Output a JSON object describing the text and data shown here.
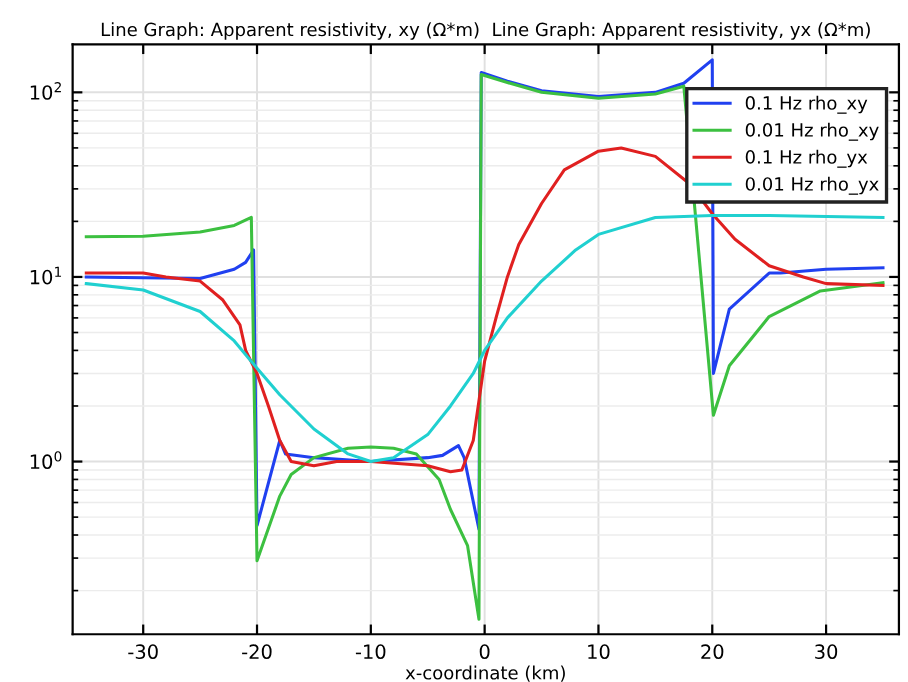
{
  "chart_data": {
    "type": "line",
    "title": "Line Graph: Apparent resistivity, xy (Ω*m)  Line Graph: Apparent resistivity, yx (Ω*m)",
    "xlabel": "x-coordinate (km)",
    "log": "y",
    "grid": true,
    "legend": "top right",
    "line_style": "solid",
    "marker": "none",
    "xlim": [
      -36.2,
      36.4
    ],
    "ylim": [
      0.116,
      182
    ],
    "xticks": [
      -30,
      -20,
      -10,
      0,
      10,
      20,
      30
    ],
    "yticks": [
      {
        "value": 1,
        "label": "10$^{0}$"
      },
      {
        "value": 10,
        "label": "10$^{1}$"
      },
      {
        "value": 100,
        "label": "10$^{2}$"
      }
    ],
    "series": [
      {
        "name": "0.1 Hz rho_xy",
        "color": "#2040f0",
        "x": [
          -35,
          -25,
          -22,
          -21,
          -20.3,
          -20,
          -18,
          -17.5,
          -15,
          -10,
          -5,
          -3.7,
          -2.3,
          -1.8,
          -0.5,
          -0.3,
          2,
          5,
          10,
          15,
          17.5,
          20,
          20.1,
          21.5,
          25,
          26,
          30,
          35
        ],
        "values": [
          10,
          9.8,
          11,
          12,
          14,
          0.45,
          1.3,
          1.1,
          1.05,
          1.0,
          1.05,
          1.08,
          1.22,
          1.05,
          0.43,
          128,
          115,
          102,
          95,
          100,
          112,
          150,
          3.0,
          6.7,
          10.5,
          10.5,
          11,
          11.2
        ]
      },
      {
        "name": "0.01 Hz rho_xy",
        "color": "#3cc040",
        "x": [
          -35,
          -30,
          -25,
          -22,
          -20.5,
          -20,
          -18,
          -17,
          -15,
          -12,
          -10,
          -8,
          -6,
          -4,
          -3,
          -1.5,
          -0.5,
          -0.3,
          2,
          5,
          10,
          15,
          17.5,
          20.1,
          21.5,
          25,
          29.5,
          35
        ],
        "values": [
          16.5,
          16.6,
          17.5,
          19,
          21,
          0.29,
          0.65,
          0.85,
          1.05,
          1.18,
          1.2,
          1.18,
          1.1,
          0.8,
          0.55,
          0.35,
          0.14,
          125,
          113,
          100,
          93,
          98,
          108,
          1.78,
          3.3,
          6.1,
          8.4,
          9.3
        ]
      },
      {
        "name": "0.1 Hz rho_yx",
        "color": "#e02020",
        "x": [
          -35,
          -30,
          -28,
          -25,
          -23,
          -21.5,
          -21,
          -20,
          -19,
          -18,
          -17,
          -15,
          -13,
          -10,
          -5,
          -3,
          -2,
          -1,
          0,
          1,
          2,
          3,
          5,
          7,
          10,
          12,
          15,
          18,
          20,
          22,
          25,
          28,
          30,
          35
        ],
        "values": [
          10.5,
          10.5,
          10,
          9.5,
          7.5,
          5.5,
          4,
          3,
          2.0,
          1.3,
          1.0,
          0.95,
          1.0,
          1.0,
          0.95,
          0.88,
          0.9,
          1.3,
          3.5,
          6,
          10,
          15,
          25,
          38,
          48,
          50,
          45,
          32,
          22,
          16,
          11.5,
          10,
          9.2,
          9.0
        ]
      },
      {
        "name": "0.01 Hz rho_yx",
        "color": "#20d0d0",
        "x": [
          -35,
          -30,
          -25,
          -22,
          -20,
          -18,
          -15,
          -12,
          -10,
          -8,
          -5,
          -3,
          -1,
          0,
          2,
          5,
          8,
          10,
          15,
          20,
          25,
          35
        ],
        "values": [
          9.2,
          8.5,
          6.5,
          4.5,
          3.2,
          2.3,
          1.5,
          1.1,
          1.0,
          1.05,
          1.4,
          2.0,
          3.0,
          4.0,
          6,
          9.5,
          14,
          17,
          21,
          21.5,
          21.5,
          21
        ]
      }
    ]
  }
}
